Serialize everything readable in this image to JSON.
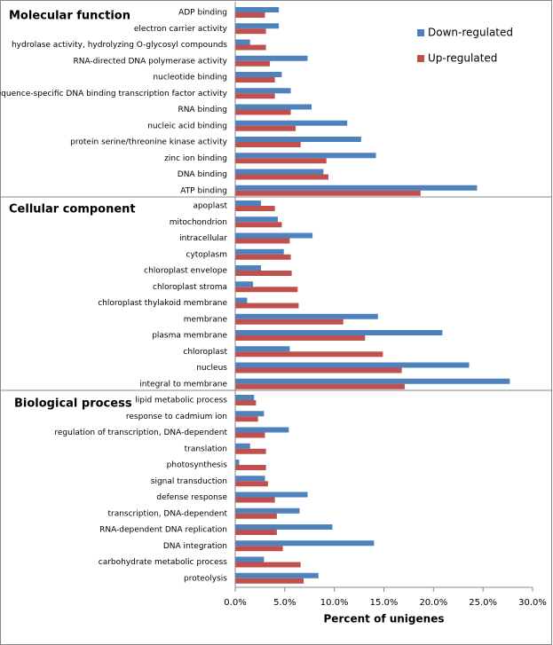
{
  "chart_data": [
    {
      "type": "bar",
      "orientation": "horizontal",
      "title": "Molecular function",
      "categories": [
        "ADP binding",
        "electron carrier activity",
        "hydrolase activity, hydrolyzing O-glycosyl compounds",
        "RNA-directed DNA polymerase activity",
        "nucleotide binding",
        "sequence-specific DNA binding transcription factor activity",
        "RNA binding",
        "nucleic acid binding",
        "protein serine/threonine kinase activity",
        "zinc ion binding",
        "DNA binding",
        "ATP binding"
      ],
      "series": [
        {
          "name": "Down-regulated",
          "color": "#4f81bd",
          "values": [
            4.4,
            4.4,
            1.5,
            7.3,
            4.7,
            5.6,
            7.7,
            11.3,
            12.7,
            14.2,
            8.9,
            24.4
          ]
        },
        {
          "name": "Up-regulated",
          "color": "#c0504d",
          "values": [
            3.0,
            3.1,
            3.1,
            3.5,
            4.0,
            4.0,
            5.6,
            6.1,
            6.6,
            9.2,
            9.4,
            18.7
          ]
        }
      ],
      "xlim": [
        0,
        30
      ],
      "legend": "upper right"
    },
    {
      "type": "bar",
      "orientation": "horizontal",
      "title": "Cellular component",
      "categories": [
        "apoplast",
        "mitochondrion",
        "intracellular",
        "cytoplasm",
        "chloroplast envelope",
        "chloroplast stroma",
        "chloroplast thylakoid membrane",
        "membrane",
        "plasma membrane",
        "chloroplast",
        "nucleus",
        "integral to membrane"
      ],
      "series": [
        {
          "color": "#4f81bd",
          "values": [
            2.6,
            4.3,
            7.8,
            4.9,
            2.6,
            1.8,
            1.2,
            14.4,
            20.9,
            5.5,
            23.6,
            27.7
          ]
        },
        {
          "color": "#c0504d",
          "values": [
            4.0,
            4.7,
            5.5,
            5.6,
            5.7,
            6.3,
            6.4,
            10.9,
            13.1,
            14.9,
            16.8,
            17.1
          ]
        }
      ],
      "xlim": [
        0,
        30
      ]
    },
    {
      "type": "bar",
      "orientation": "horizontal",
      "title": "Biological process",
      "categories": [
        "lipid metabolic process",
        "response to cadmium ion",
        "regulation of transcription, DNA-dependent",
        "translation",
        "photosynthesis",
        "signal transduction",
        "defense response",
        "transcription, DNA-dependent",
        "RNA-dependent DNA replication",
        "DNA integration",
        "carbohydrate metabolic process",
        "proteolysis"
      ],
      "series": [
        {
          "color": "#4f81bd",
          "values": [
            1.9,
            2.9,
            5.4,
            1.5,
            0.4,
            3.0,
            7.3,
            6.5,
            9.8,
            14.0,
            2.9,
            8.4
          ]
        },
        {
          "color": "#c0504d",
          "values": [
            2.1,
            2.3,
            3.0,
            3.1,
            3.1,
            3.3,
            4.0,
            4.2,
            4.2,
            4.8,
            6.6,
            6.9
          ]
        }
      ],
      "xlim": [
        0,
        30
      ],
      "xticks": [
        {
          "value": 0,
          "label": "0.0%"
        },
        {
          "value": 5,
          "label": "5.0%"
        },
        {
          "value": 10,
          "label": "10.0%"
        },
        {
          "value": 15,
          "label": "15.0%"
        },
        {
          "value": 20,
          "label": "20.0%"
        },
        {
          "value": 25,
          "label": "25.0%"
        },
        {
          "value": 30,
          "label": "30.0%"
        }
      ],
      "xlabel": "Percent of unigenes"
    }
  ]
}
